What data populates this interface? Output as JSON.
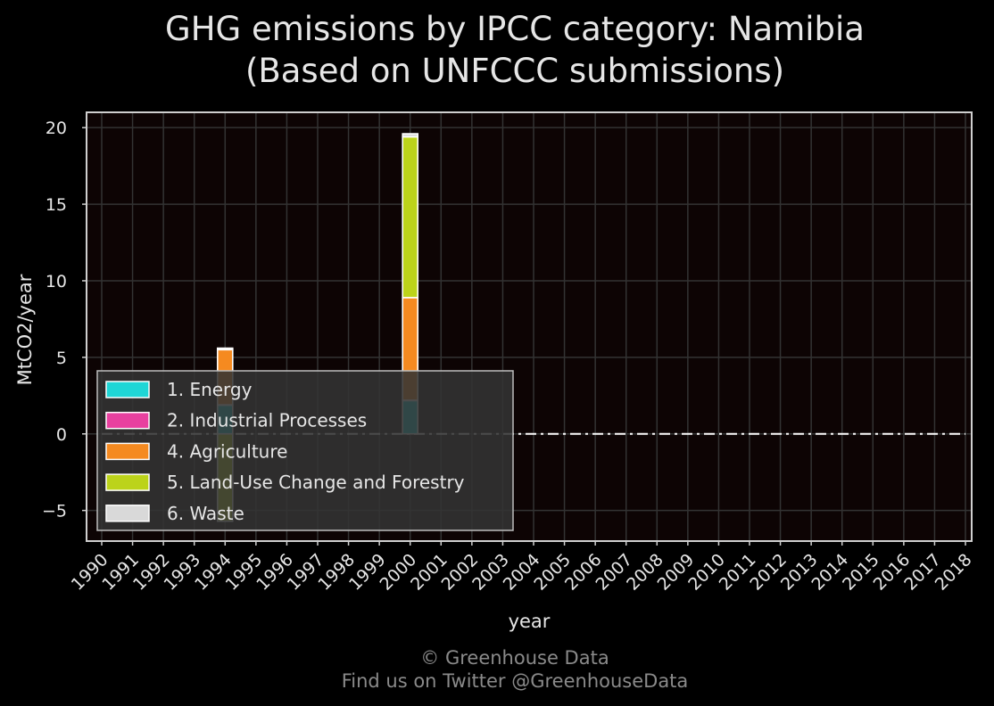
{
  "colors": {
    "background": "#000000",
    "plot_background": "#0d0404",
    "grid": "#333333",
    "frame": "#cfcfcf",
    "text": "#e6e6e6",
    "footer_text": "#8a8a8a",
    "legend_background": "#333333",
    "legend_border": "#bdbdbd"
  },
  "chart_data": {
    "type": "bar",
    "stacked": true,
    "title": [
      "GHG emissions by IPCC category: Namibia",
      "(Based on UNFCCC submissions)"
    ],
    "xlabel": "year",
    "ylabel": "MtCO2/year",
    "ylim": [
      -7,
      21
    ],
    "yticks": [
      -5,
      0,
      5,
      10,
      15,
      20
    ],
    "ytick_labels": [
      "−5",
      "0",
      "5",
      "10",
      "15",
      "20"
    ],
    "categories": [
      "1990",
      "1991",
      "1992",
      "1993",
      "1994",
      "1995",
      "1996",
      "1997",
      "1998",
      "1999",
      "2000",
      "2001",
      "2002",
      "2003",
      "2004",
      "2005",
      "2006",
      "2007",
      "2008",
      "2009",
      "2010",
      "2011",
      "2012",
      "2013",
      "2014",
      "2015",
      "2016",
      "2017",
      "2018"
    ],
    "grid": true,
    "legend_position": "lower-left",
    "series": [
      {
        "name": "1. Energy",
        "color": "#1fd6d6",
        "values": [
          null,
          null,
          null,
          null,
          1.9,
          null,
          null,
          null,
          null,
          null,
          2.2,
          null,
          null,
          null,
          null,
          null,
          null,
          null,
          null,
          null,
          null,
          null,
          null,
          null,
          null,
          null,
          null,
          null,
          null
        ]
      },
      {
        "name": "2. Industrial Processes",
        "color": "#e8409f",
        "values": [
          null,
          null,
          null,
          null,
          0.0,
          null,
          null,
          null,
          null,
          null,
          0.0,
          null,
          null,
          null,
          null,
          null,
          null,
          null,
          null,
          null,
          null,
          null,
          null,
          null,
          null,
          null,
          null,
          null,
          null
        ]
      },
      {
        "name": "4. Agriculture",
        "color": "#f58a20",
        "values": [
          null,
          null,
          null,
          null,
          3.6,
          null,
          null,
          null,
          null,
          null,
          6.7,
          null,
          null,
          null,
          null,
          null,
          null,
          null,
          null,
          null,
          null,
          null,
          null,
          null,
          null,
          null,
          null,
          null,
          null
        ]
      },
      {
        "name": "5. Land-Use Change and Forestry",
        "color": "#bcd31a",
        "values": [
          null,
          null,
          null,
          null,
          -5.7,
          null,
          null,
          null,
          null,
          null,
          10.5,
          null,
          null,
          null,
          null,
          null,
          null,
          null,
          null,
          null,
          null,
          null,
          null,
          null,
          null,
          null,
          null,
          null,
          null
        ]
      },
      {
        "name": "6. Waste",
        "color": "#d9d9d9",
        "values": [
          null,
          null,
          null,
          null,
          0.1,
          null,
          null,
          null,
          null,
          null,
          0.2,
          null,
          null,
          null,
          null,
          null,
          null,
          null,
          null,
          null,
          null,
          null,
          null,
          null,
          null,
          null,
          null,
          null,
          null
        ]
      }
    ]
  },
  "footer": {
    "copyright": "© Greenhouse Data",
    "twitter": "Find us on Twitter @GreenhouseData"
  }
}
